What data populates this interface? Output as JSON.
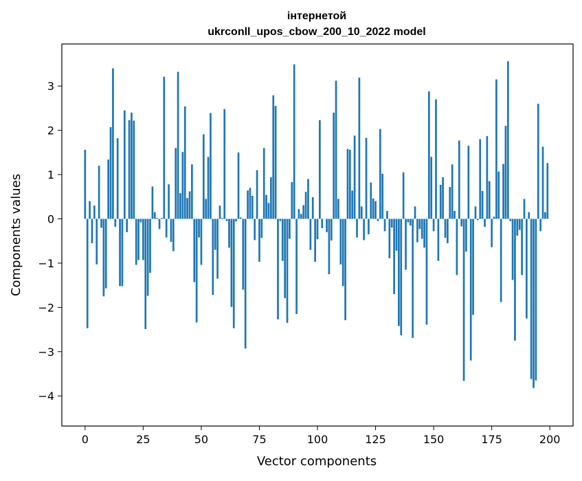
{
  "chart_data": {
    "type": "bar",
    "title": [
      "інтернетой",
      "ukrconll_upos_cbow_200_10_2022 model"
    ],
    "xlabel": "Vector components",
    "ylabel": "Components values",
    "xlim": [
      -10,
      210
    ],
    "ylim": [
      -4.68,
      3.95
    ],
    "xticks": [
      0,
      25,
      50,
      75,
      100,
      125,
      150,
      175,
      200
    ],
    "yticks": [
      -4,
      -3,
      -2,
      -1,
      0,
      1,
      2,
      3
    ],
    "ytick_labels": [
      "−4",
      "−3",
      "−2",
      "−1",
      "0",
      "1",
      "2",
      "3"
    ],
    "grid": false,
    "bar_color": "#1f77b4",
    "x": [
      0,
      1,
      2,
      3,
      4,
      5,
      6,
      7,
      8,
      9,
      10,
      11,
      12,
      13,
      14,
      15,
      16,
      17,
      18,
      19,
      20,
      21,
      22,
      23,
      24,
      25,
      26,
      27,
      28,
      29,
      30,
      31,
      32,
      33,
      34,
      35,
      36,
      37,
      38,
      39,
      40,
      41,
      42,
      43,
      44,
      45,
      46,
      47,
      48,
      49,
      50,
      51,
      52,
      53,
      54,
      55,
      56,
      57,
      58,
      59,
      60,
      61,
      62,
      63,
      64,
      65,
      66,
      67,
      68,
      69,
      70,
      71,
      72,
      73,
      74,
      75,
      76,
      77,
      78,
      79,
      80,
      81,
      82,
      83,
      84,
      85,
      86,
      87,
      88,
      89,
      90,
      91,
      92,
      93,
      94,
      95,
      96,
      97,
      98,
      99,
      100,
      101,
      102,
      103,
      104,
      105,
      106,
      107,
      108,
      109,
      110,
      111,
      112,
      113,
      114,
      115,
      116,
      117,
      118,
      119,
      120,
      121,
      122,
      123,
      124,
      125,
      126,
      127,
      128,
      129,
      130,
      131,
      132,
      133,
      134,
      135,
      136,
      137,
      138,
      139,
      140,
      141,
      142,
      143,
      144,
      145,
      146,
      147,
      148,
      149,
      150,
      151,
      152,
      153,
      154,
      155,
      156,
      157,
      158,
      159,
      160,
      161,
      162,
      163,
      164,
      165,
      166,
      167,
      168,
      169,
      170,
      171,
      172,
      173,
      174,
      175,
      176,
      177,
      178,
      179,
      180,
      181,
      182,
      183,
      184,
      185,
      186,
      187,
      188,
      189,
      190,
      191,
      192,
      193,
      194,
      195,
      196,
      197,
      198,
      199
    ],
    "values": [
      1.56,
      -2.47,
      0.4,
      -0.55,
      0.3,
      -1.03,
      1.2,
      -0.2,
      -1.75,
      -1.57,
      1.34,
      2.07,
      3.4,
      -0.18,
      1.82,
      -1.52,
      -1.52,
      2.45,
      -0.3,
      2.23,
      2.4,
      2.22,
      -1.04,
      -0.93,
      -0.08,
      -0.93,
      -2.49,
      -1.74,
      -1.22,
      0.73,
      0.15,
      0.02,
      -0.23,
      0.02,
      3.21,
      -0.42,
      0.78,
      -0.52,
      -0.73,
      1.6,
      3.32,
      0.58,
      1.51,
      2.54,
      0.47,
      0.62,
      1.23,
      -1.43,
      -2.34,
      -0.42,
      -1.04,
      1.91,
      0.45,
      1.4,
      2.39,
      -1.72,
      -0.7,
      -1.35,
      0.3,
      0.02,
      2.48,
      -0.05,
      -0.65,
      -1.99,
      -2.47,
      -0.06,
      1.5,
      0.03,
      -1.6,
      -2.93,
      0.64,
      0.7,
      0.52,
      -0.48,
      1.1,
      -0.97,
      -0.43,
      1.6,
      0.54,
      0.36,
      0.94,
      2.79,
      2.55,
      -2.27,
      -0.05,
      -0.95,
      -1.79,
      -2.35,
      -0.45,
      0.83,
      3.49,
      -2.15,
      0.22,
      0.11,
      0.31,
      0.61,
      0.9,
      -0.7,
      0.49,
      -0.97,
      -0.46,
      2.23,
      -0.21,
      0.0,
      -0.3,
      -1.25,
      -0.49,
      2.4,
      3.12,
      0.45,
      -1.03,
      -1.52,
      -2.29,
      1.58,
      1.56,
      0.64,
      1.88,
      -0.42,
      3.19,
      0.28,
      -0.48,
      1.83,
      -0.35,
      0.82,
      0.46,
      0.4,
      -0.05,
      2.03,
      1.02,
      -0.28,
      0.18,
      -0.89,
      -0.2,
      -1.7,
      -0.72,
      -2.42,
      -2.63,
      1.05,
      -1.15,
      -0.08,
      -0.15,
      -2.69,
      0.28,
      -0.53,
      -0.23,
      -0.45,
      -0.65,
      -2.39,
      2.88,
      1.4,
      -0.28,
      2.7,
      -0.95,
      0.77,
      0.94,
      -0.43,
      -0.55,
      0.72,
      1.23,
      0.18,
      -1.27,
      1.77,
      -0.17,
      -3.66,
      -0.74,
      1.65,
      -3.2,
      -2.17,
      0.28,
      -0.03,
      1.8,
      0.63,
      -0.18,
      1.87,
      0.85,
      -0.64,
      0.05,
      3.15,
      1.07,
      -1.88,
      1.24,
      2.1,
      3.56,
      -0.05,
      -1.38,
      -2.75,
      -0.38,
      -0.25,
      -1.27,
      0.45,
      -2.25,
      0.15,
      -3.62,
      -3.82,
      -3.65,
      2.6,
      -0.28,
      1.63,
      0.15,
      1.26
    ]
  }
}
